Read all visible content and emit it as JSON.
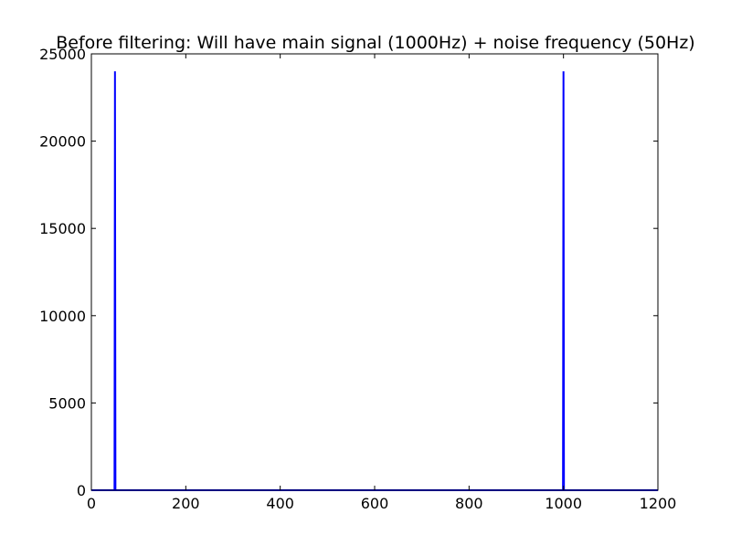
{
  "chart_data": {
    "type": "line",
    "title": "Before filtering: Will have main signal (1000Hz) + noise frequency (50Hz)",
    "xlabel": "",
    "ylabel": "",
    "xlim": [
      0,
      1200
    ],
    "ylim": [
      0,
      25000
    ],
    "xticks": [
      0,
      200,
      400,
      600,
      800,
      1000,
      1200
    ],
    "yticks": [
      0,
      5000,
      10000,
      15000,
      20000,
      25000
    ],
    "grid": false,
    "series": [
      {
        "color": "#0000ff",
        "x": [
          0,
          49,
          50,
          51,
          999,
          1000,
          1001,
          1200
        ],
        "y": [
          0,
          0,
          24000,
          0,
          0,
          24000,
          0,
          0
        ]
      }
    ]
  }
}
